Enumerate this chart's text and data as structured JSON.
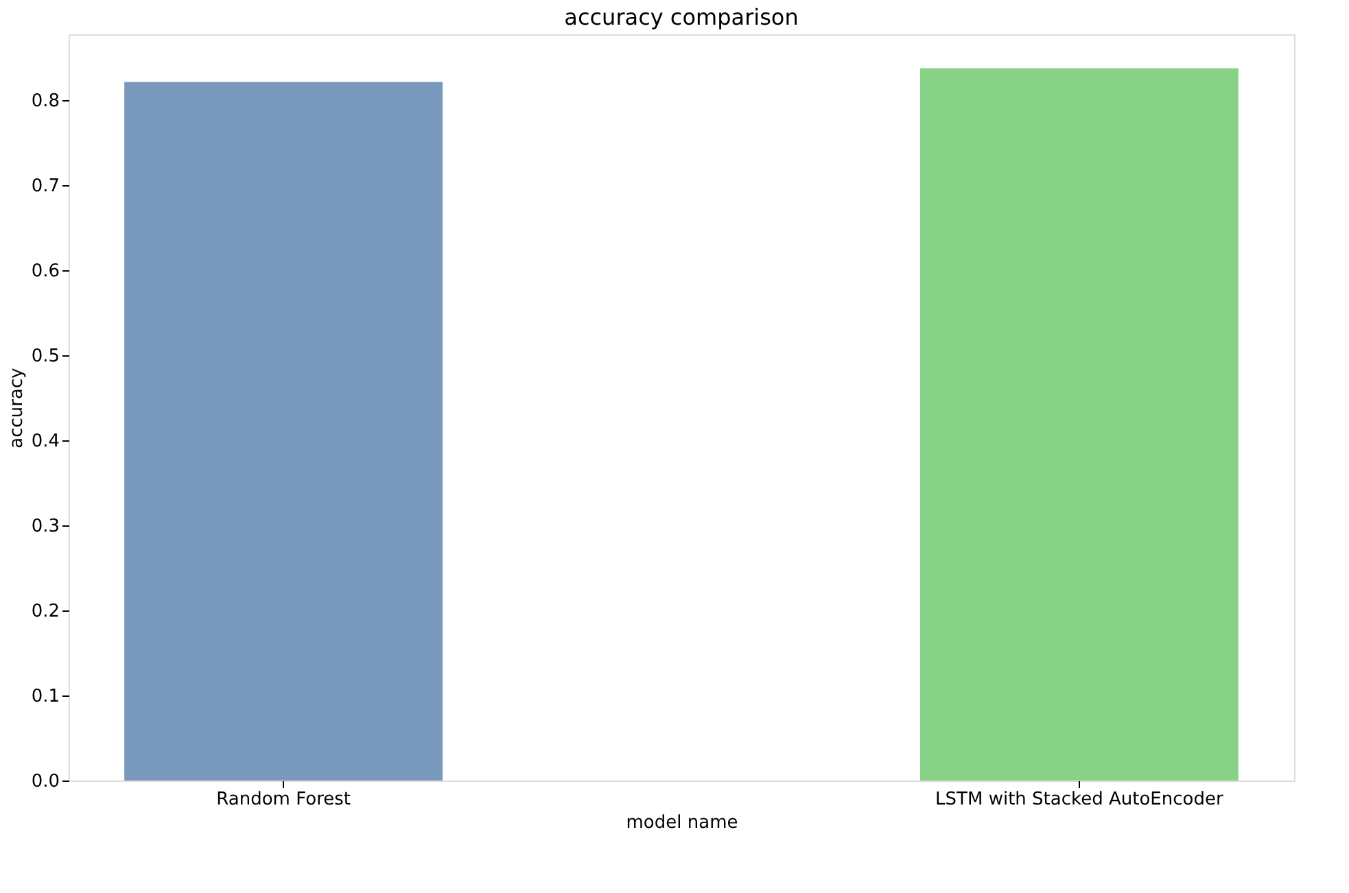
{
  "chart_data": {
    "type": "bar",
    "title": "accuracy comparison",
    "xlabel": "model name",
    "ylabel": "accuracy",
    "categories": [
      "Random Forest",
      "LSTM with Stacked AutoEncoder"
    ],
    "values": [
      0.821,
      0.837
    ],
    "colors": [
      "#7899bb",
      "#88d288"
    ],
    "ylim": [
      0,
      0.877
    ],
    "yticks": [
      {
        "value": 0,
        "label": "0.0"
      },
      0.1,
      0.2,
      0.3,
      0.4,
      0.5,
      0.6,
      0.7,
      0.8
    ],
    "grid": false
  }
}
